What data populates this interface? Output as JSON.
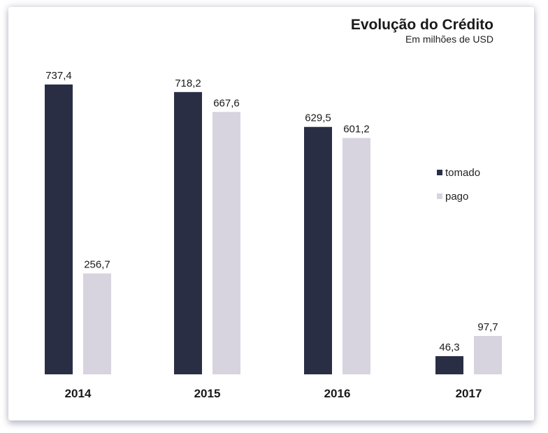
{
  "chart_data": {
    "type": "bar",
    "title": "Evolução do Crédito",
    "subtitle": "Em milhões de USD",
    "categories": [
      "2014",
      "2015",
      "2016",
      "2017"
    ],
    "series": [
      {
        "name": "tomado",
        "values": [
          737.4,
          718.2,
          629.5,
          46.3
        ],
        "labels": [
          "737,4",
          "718,2",
          "629,5",
          "46,3"
        ]
      },
      {
        "name": "pago",
        "values": [
          256.7,
          667.6,
          601.2,
          97.7
        ],
        "labels": [
          "256,7",
          "667,6",
          "601,2",
          "97,7"
        ]
      }
    ],
    "ylim": [
      0,
      737.4
    ],
    "grid": false,
    "legend_position": "right",
    "colors": {
      "tomado": "#2a2e45",
      "pago": "#d7d3df"
    }
  }
}
